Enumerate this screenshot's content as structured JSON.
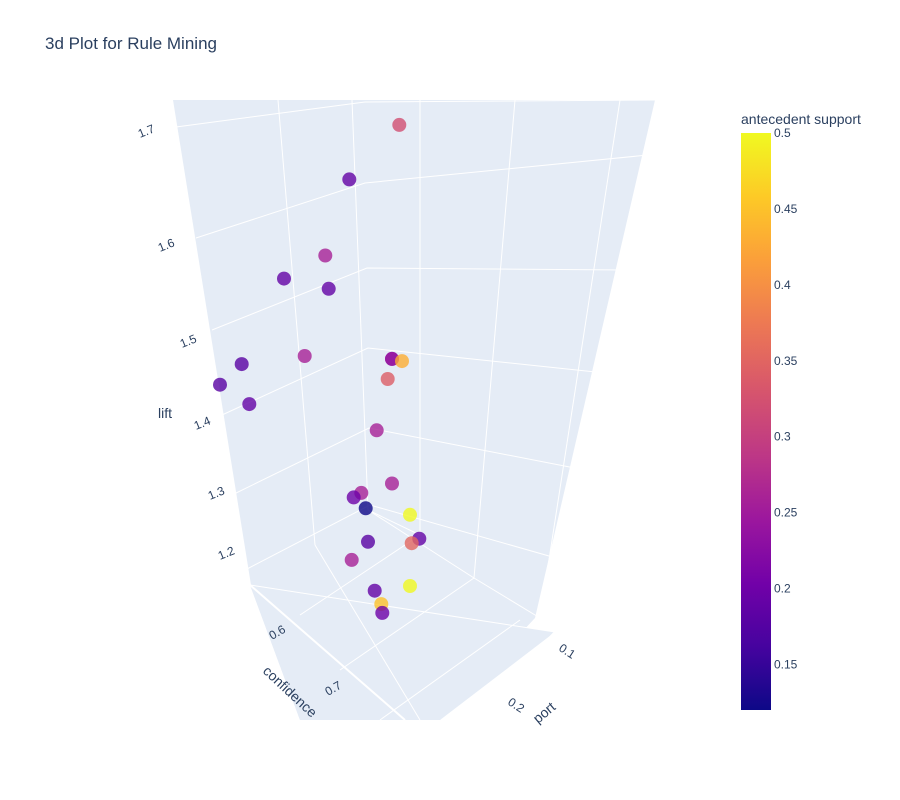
{
  "chart_data": {
    "type": "scatter3d",
    "title": "3d Plot for Rule Mining",
    "axes": {
      "x": {
        "label": "support",
        "visible_label": "port",
        "ticks": [
          "0.1",
          "0.2"
        ]
      },
      "y": {
        "label": "confidence",
        "ticks": [
          "0.6",
          "0.7"
        ]
      },
      "z": {
        "label": "lift",
        "ticks": [
          "1.2",
          "1.3",
          "1.4",
          "1.5",
          "1.6",
          "1.7"
        ]
      }
    },
    "colorbar": {
      "title": "antecedent support",
      "range": [
        0.12,
        0.5
      ],
      "ticks": [
        "0.15",
        "0.2",
        "0.25",
        "0.3",
        "0.35",
        "0.4",
        "0.45",
        "0.5"
      ],
      "colorscale": [
        "#0d0887",
        "#46039f",
        "#7201a8",
        "#9c179e",
        "#bd3786",
        "#d8576b",
        "#ed7953",
        "#fb9f3a",
        "#fdca26",
        "#f0f921"
      ]
    },
    "points": [
      {
        "support": 0.09,
        "confidence": 0.52,
        "lift": 1.72,
        "antecedent_support": 0.32
      },
      {
        "support": 0.07,
        "confidence": 0.58,
        "lift": 1.67,
        "antecedent_support": 0.19
      },
      {
        "support": 0.05,
        "confidence": 0.58,
        "lift": 1.58,
        "antecedent_support": 0.26
      },
      {
        "support": 0.03,
        "confidence": 0.62,
        "lift": 1.56,
        "antecedent_support": 0.19
      },
      {
        "support": 0.02,
        "confidence": 0.74,
        "lift": 1.47,
        "antecedent_support": 0.18
      },
      {
        "support": 0.02,
        "confidence": 0.69,
        "lift": 1.48,
        "antecedent_support": 0.18
      },
      {
        "support": 0.06,
        "confidence": 0.6,
        "lift": 1.55,
        "antecedent_support": 0.19
      },
      {
        "support": 0.04,
        "confidence": 0.6,
        "lift": 1.47,
        "antecedent_support": 0.26
      },
      {
        "support": 0.03,
        "confidence": 0.7,
        "lift": 1.44,
        "antecedent_support": 0.19
      },
      {
        "support": 0.15,
        "confidence": 0.68,
        "lift": 1.51,
        "antecedent_support": 0.43
      },
      {
        "support": 0.12,
        "confidence": 0.62,
        "lift": 1.49,
        "antecedent_support": 0.24
      },
      {
        "support": 0.12,
        "confidence": 0.62,
        "lift": 1.49,
        "antecedent_support": 0.24
      },
      {
        "support": 0.12,
        "confidence": 0.63,
        "lift": 1.47,
        "antecedent_support": 0.34
      },
      {
        "support": 0.2,
        "confidence": 0.8,
        "lift": 1.38,
        "antecedent_support": 0.5
      },
      {
        "support": 0.1,
        "confidence": 0.6,
        "lift": 1.4,
        "antecedent_support": 0.26
      },
      {
        "support": 0.12,
        "confidence": 0.62,
        "lift": 1.35,
        "antecedent_support": 0.26
      },
      {
        "support": 0.08,
        "confidence": 0.58,
        "lift": 1.32,
        "antecedent_support": 0.26
      },
      {
        "support": 0.07,
        "confidence": 0.57,
        "lift": 1.31,
        "antecedent_support": 0.2
      },
      {
        "support": 0.08,
        "confidence": 0.57,
        "lift": 1.3,
        "antecedent_support": 0.12
      },
      {
        "support": 0.15,
        "confidence": 0.64,
        "lift": 1.3,
        "antecedent_support": 0.19
      },
      {
        "support": 0.14,
        "confidence": 0.63,
        "lift": 1.29,
        "antecedent_support": 0.35
      },
      {
        "support": 0.1,
        "confidence": 0.62,
        "lift": 1.28,
        "antecedent_support": 0.18
      },
      {
        "support": 0.09,
        "confidence": 0.63,
        "lift": 1.26,
        "antecedent_support": 0.26
      },
      {
        "support": 0.2,
        "confidence": 0.8,
        "lift": 1.3,
        "antecedent_support": 0.5
      },
      {
        "support": 0.12,
        "confidence": 0.66,
        "lift": 1.24,
        "antecedent_support": 0.19
      },
      {
        "support": 0.14,
        "confidence": 0.7,
        "lift": 1.24,
        "antecedent_support": 0.45
      },
      {
        "support": 0.13,
        "confidence": 0.67,
        "lift": 1.22,
        "antecedent_support": 0.2
      }
    ]
  }
}
